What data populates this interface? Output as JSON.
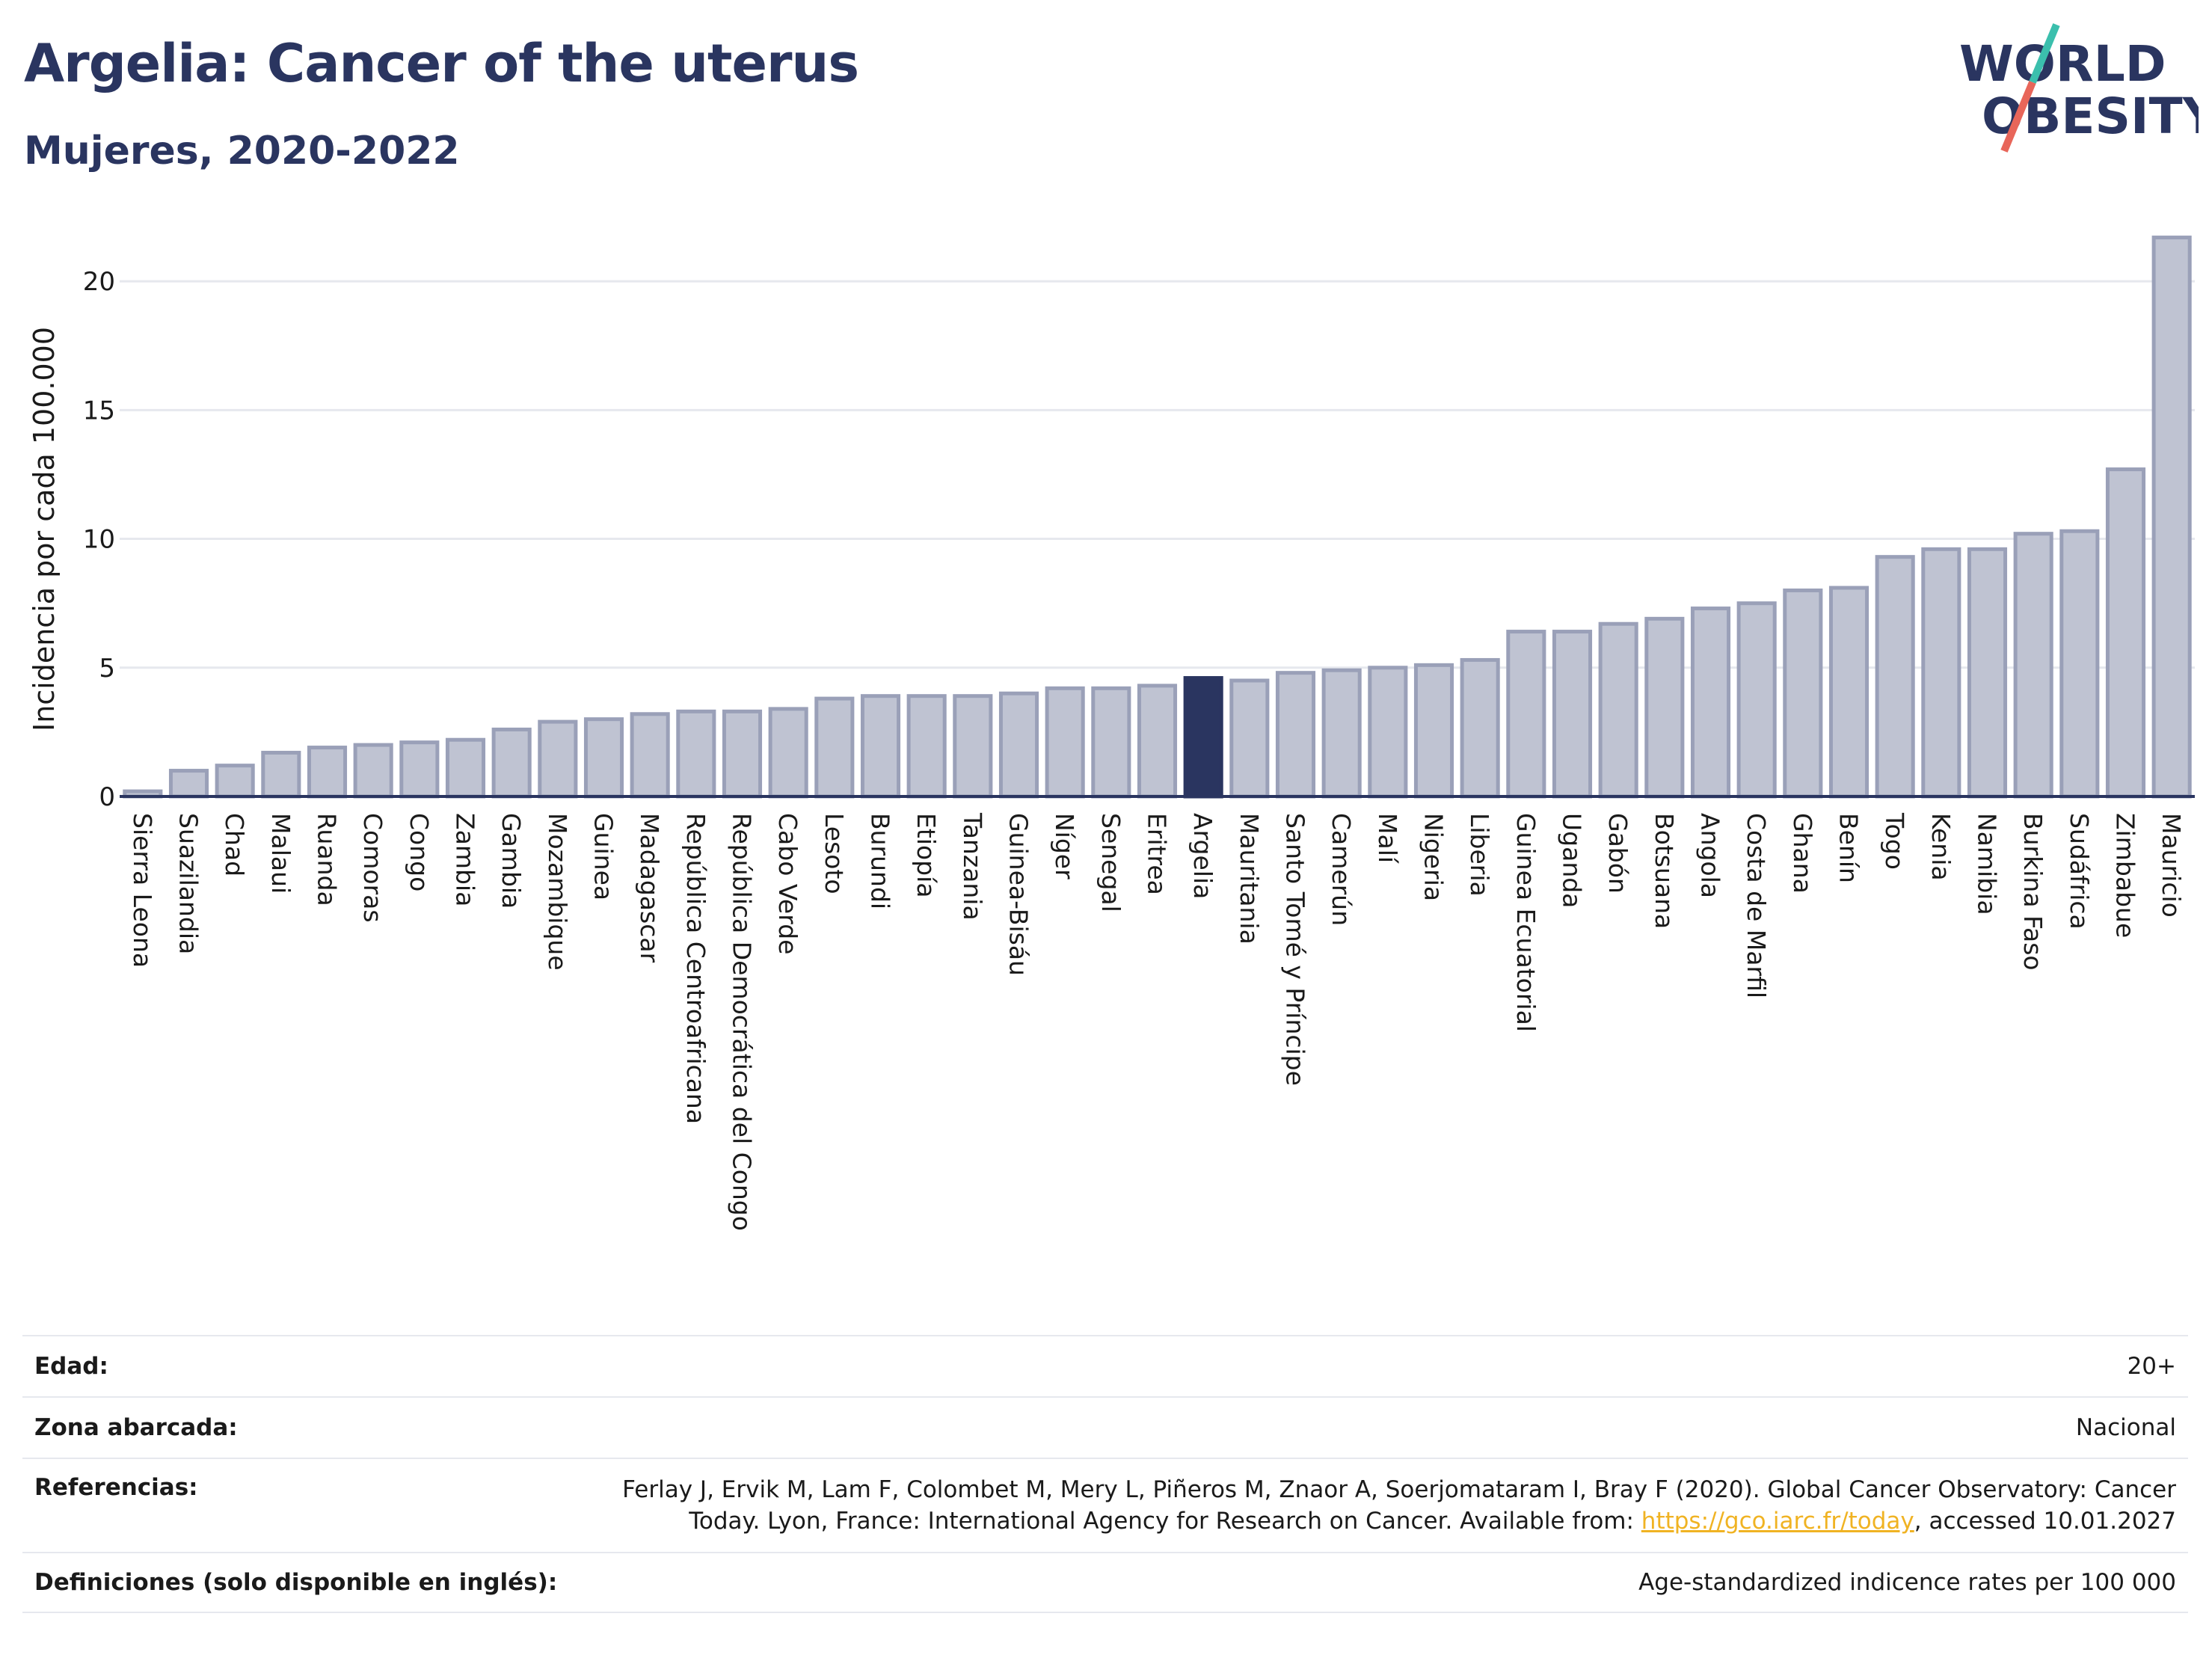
{
  "header": {
    "title": "Argelia: Cancer of the uterus",
    "subtitle": "Mujeres, 2020-2022"
  },
  "logo": {
    "line1": "WORLD",
    "line2": "OBESITY",
    "colors": {
      "text": "#2a3560",
      "slash_top": "#3bbfad",
      "slash_bottom": "#e8665a"
    }
  },
  "colors": {
    "bar_fill": "#bfc3d2",
    "bar_stroke": "#9aa0b8",
    "highlight": "#2a3560",
    "grid": "#e6e8ee",
    "axis": "#2a3560"
  },
  "chart_data": {
    "type": "bar",
    "ylabel": "Incidencia por cada 100.000",
    "ylim": [
      0,
      22.5
    ],
    "yticks": [
      0,
      5,
      10,
      15,
      20
    ],
    "highlight": "Argelia",
    "categories": [
      "Sierra Leona",
      "Suazilandia",
      "Chad",
      "Malaui",
      "Ruanda",
      "Comoras",
      "Congo",
      "Zambia",
      "Gambia",
      "Mozambique",
      "Guinea",
      "Madagascar",
      "República Centroafricana",
      "República Democrática del Congo",
      "Cabo Verde",
      "Lesoto",
      "Burundi",
      "Etiopía",
      "Tanzania",
      "Guinea-Bisáu",
      "Níger",
      "Senegal",
      "Eritrea",
      "Argelia",
      "Mauritania",
      "Santo Tomé y Príncipe",
      "Camerún",
      "Malí",
      "Nigeria",
      "Liberia",
      "Guinea Ecuatorial",
      "Uganda",
      "Gabón",
      "Botsuana",
      "Angola",
      "Costa de Marfil",
      "Ghana",
      "Benín",
      "Togo",
      "Kenia",
      "Namibia",
      "Burkina Faso",
      "Sudáfrica",
      "Zimbabue",
      "Mauricio"
    ],
    "values": [
      0.2,
      1.0,
      1.2,
      1.7,
      1.9,
      2.0,
      2.1,
      2.2,
      2.6,
      2.9,
      3.0,
      3.2,
      3.3,
      3.3,
      3.4,
      3.8,
      3.9,
      3.9,
      3.9,
      4.0,
      4.2,
      4.2,
      4.3,
      4.6,
      4.5,
      4.8,
      4.9,
      5.0,
      5.1,
      5.3,
      6.4,
      6.4,
      6.7,
      6.9,
      7.3,
      7.5,
      8.0,
      8.1,
      9.3,
      9.6,
      9.6,
      10.2,
      10.3,
      12.7,
      21.7
    ]
  },
  "meta": [
    {
      "label": "Edad:",
      "value": "20+"
    },
    {
      "label": "Zona abarcada:",
      "value": "Nacional"
    },
    {
      "label": "Referencias:",
      "value_line1": "Ferlay J, Ervik M, Lam F, Colombet M, Mery L, Piñeros M, Znaor A, Soerjomataram I, Bray F (2020). Global Cancer Observatory: Cancer",
      "value_line2_pre": "Today. Lyon, France: International Agency for Research on Cancer. Available from: ",
      "value_link": "https://gco.iarc.fr/today",
      "value_line2_post": ", accessed 10.01.2027"
    },
    {
      "label": "Definiciones (solo disponible en inglés):",
      "value": "Age-standardized indicence rates per 100 000"
    }
  ]
}
